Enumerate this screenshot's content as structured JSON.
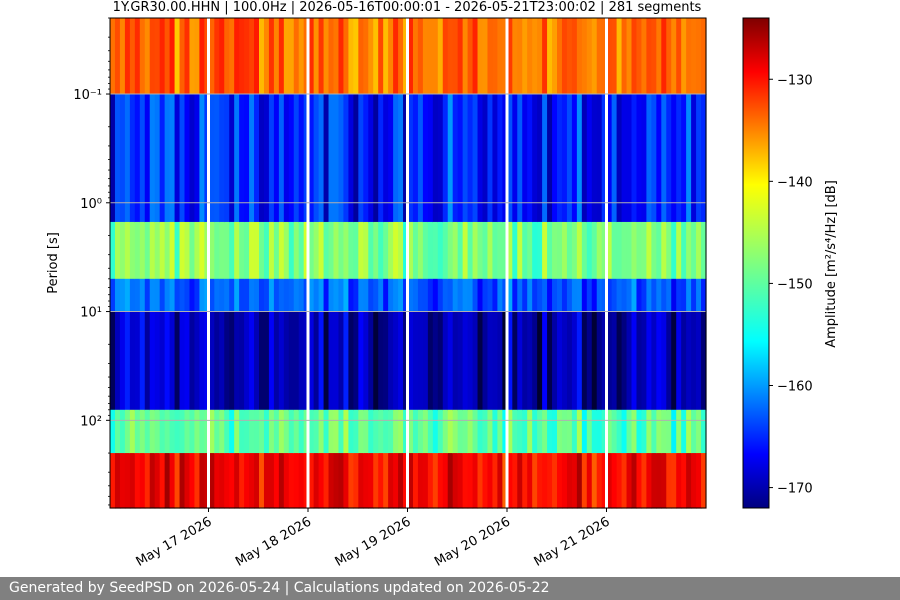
{
  "chart_data": {
    "type": "heatmap",
    "title": "1Y.GR30.00.HHN | 100.0Hz | 2026-05-16T00:00:01 - 2026-05-21T23:00:02 | 281 segments",
    "ylabel": "Period [s]",
    "colorbar_label": "Amplitude [m²/s⁴/Hz] [dB]",
    "colormap": "jet",
    "x_start": "2026-05-16T00:00:01",
    "x_end": "2026-05-21T23:00:02",
    "x_ticks": [
      "May 17 2026",
      "May 18 2026",
      "May 19 2026",
      "May 20 2026",
      "May 21 2026"
    ],
    "y_scale": "log",
    "y_ticks": [
      "10⁻¹",
      "10⁰",
      "10¹",
      "10²"
    ],
    "ylim": [
      0.02,
      640
    ],
    "y_inverted": true,
    "grid": true,
    "colorbar_range": [
      -172,
      -124
    ],
    "colorbar_ticks": [
      -130,
      -140,
      -150,
      -160,
      -170
    ],
    "segments": 281,
    "data_gaps_days": [
      1.0,
      2.0,
      3.0,
      4.0,
      5.0
    ],
    "spectral_bands": [
      {
        "period_range": [
          0.02,
          0.1
        ],
        "level_db": -135
      },
      {
        "period_range": [
          0.1,
          1.5
        ],
        "level_db": -165
      },
      {
        "period_range": [
          1.5,
          5
        ],
        "level_db": -148
      },
      {
        "period_range": [
          5,
          10
        ],
        "level_db": -162
      },
      {
        "period_range": [
          10,
          80
        ],
        "level_db": -170
      },
      {
        "period_range": [
          80,
          200
        ],
        "level_db": -150
      },
      {
        "period_range": [
          200,
          640
        ],
        "level_db": -130
      }
    ]
  },
  "footer": {
    "text": "Generated by SeedPSD on 2026-05-24 | Calculations updated on 2026-05-22"
  }
}
